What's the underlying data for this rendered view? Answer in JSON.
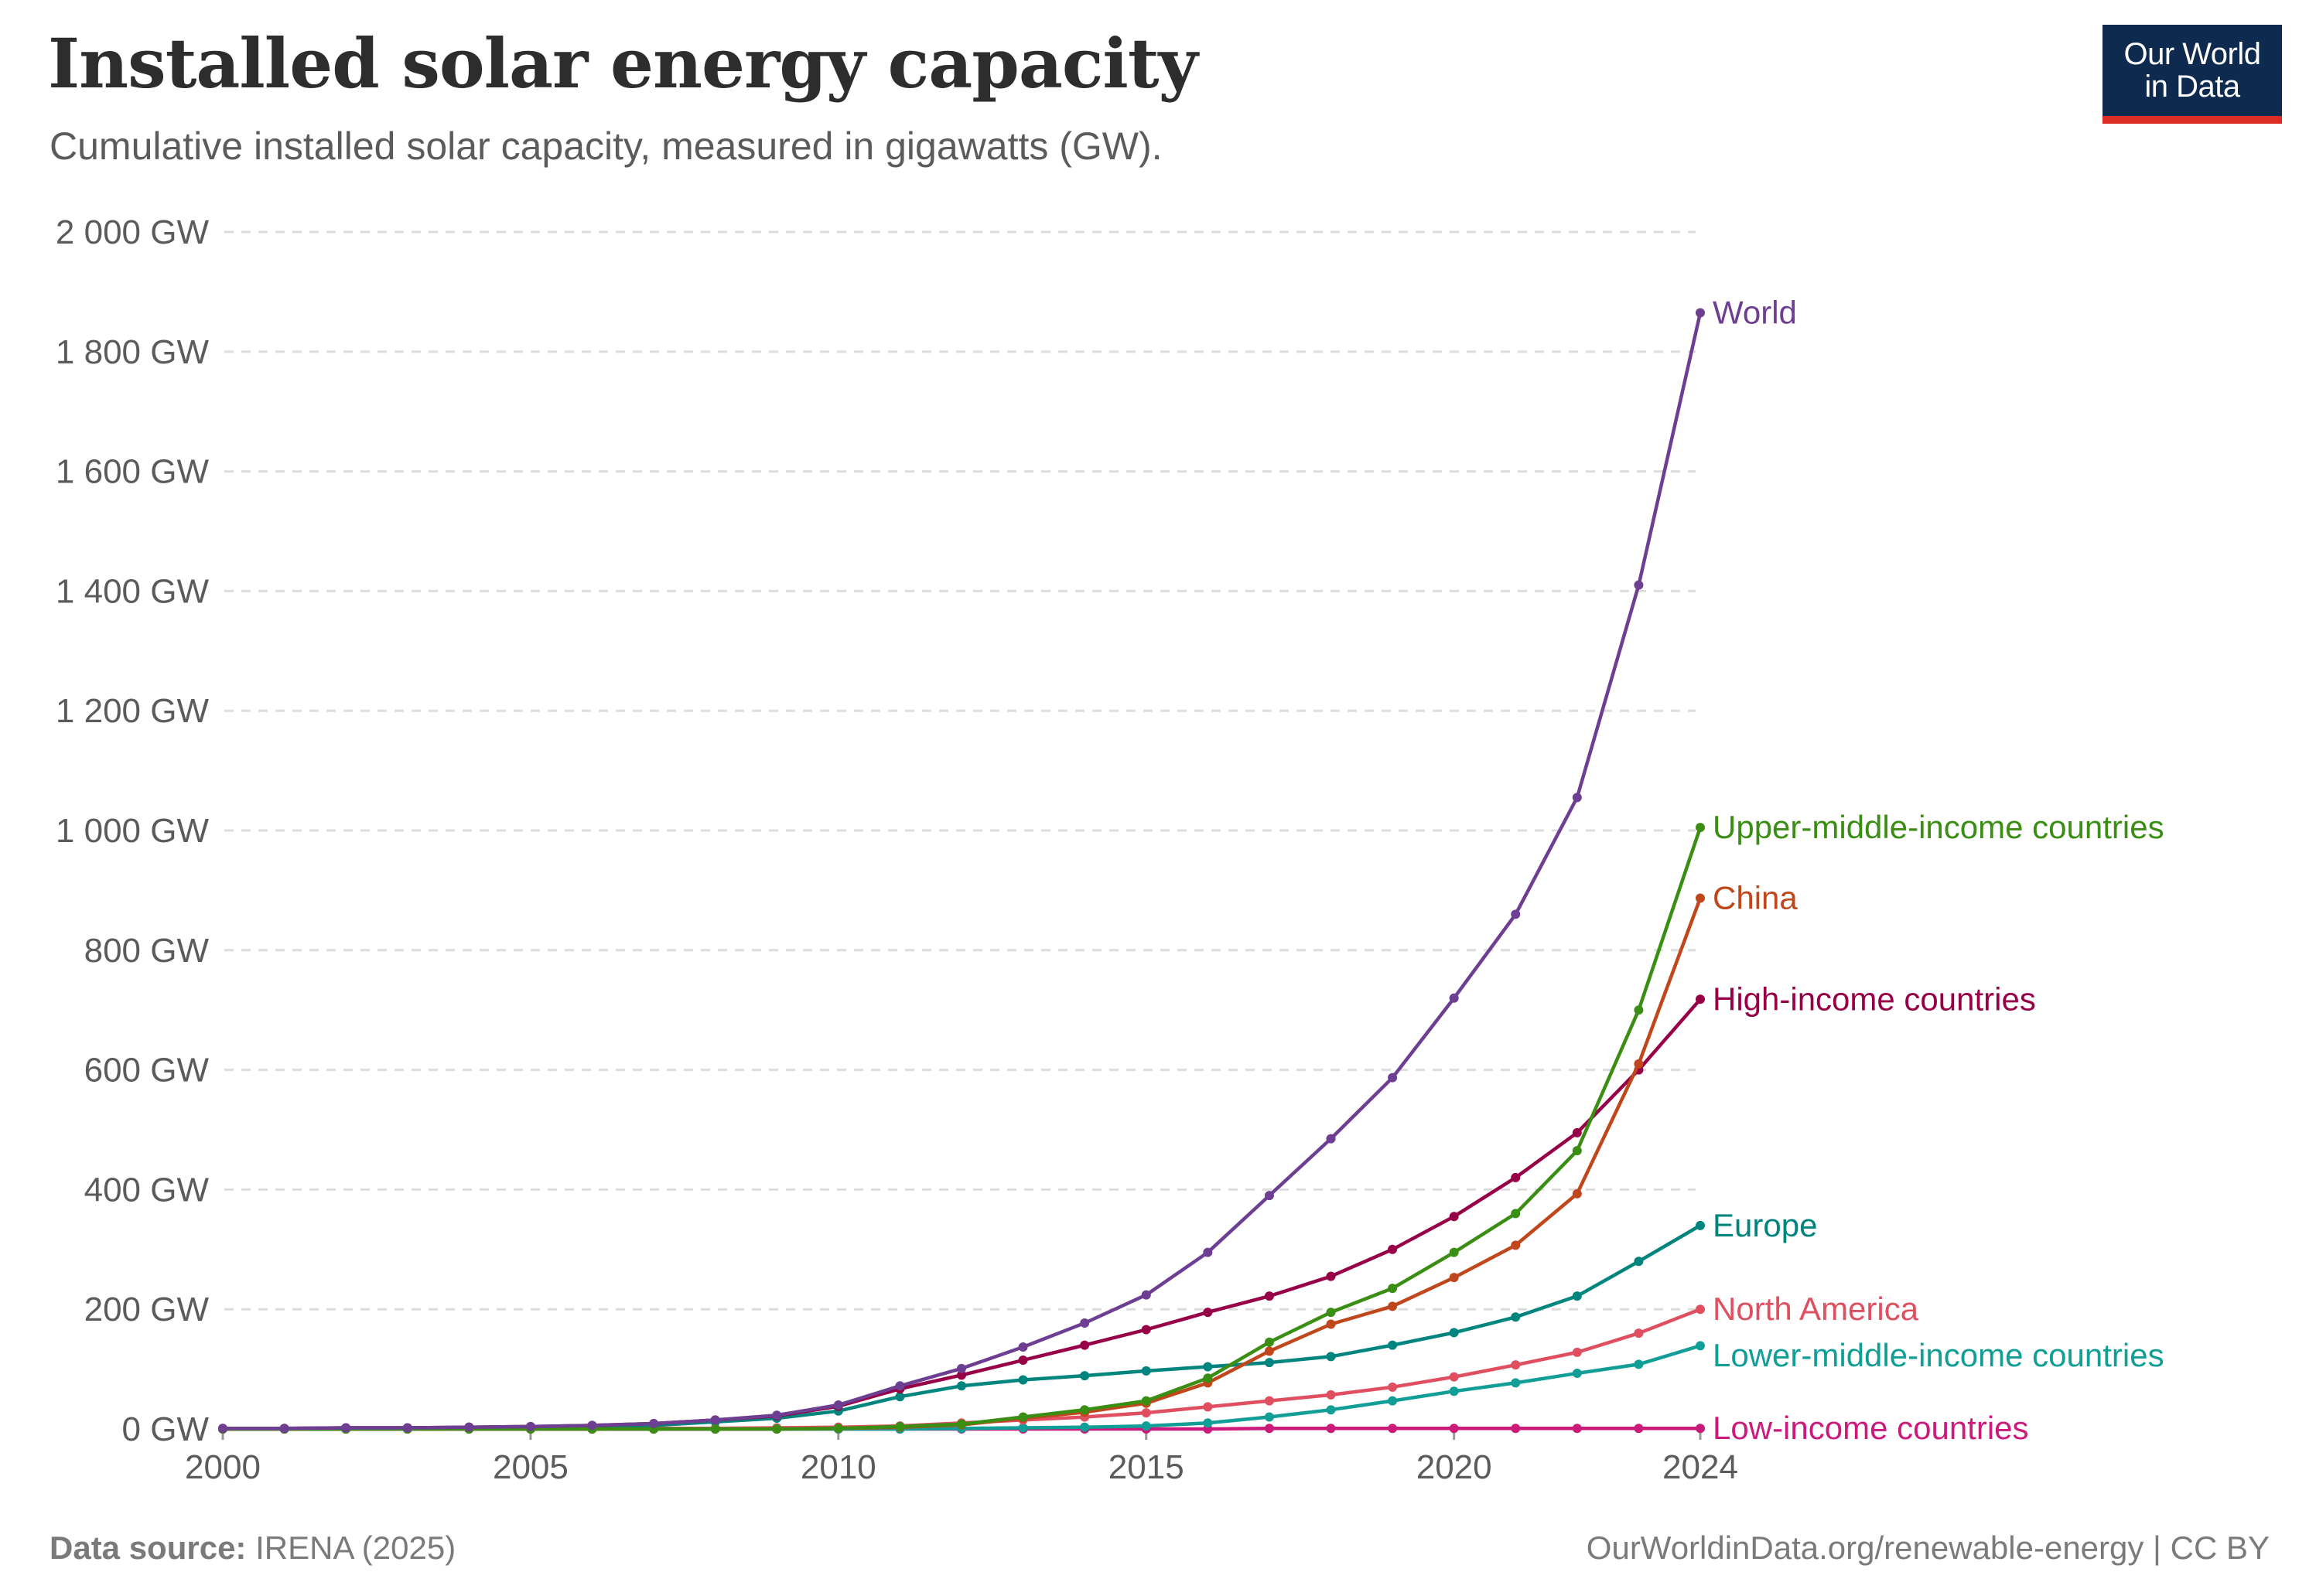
{
  "title": "Installed solar energy capacity",
  "subtitle": "Cumulative installed solar capacity, measured in gigawatts (GW).",
  "logo": {
    "line1": "Our World",
    "line2": "in Data"
  },
  "footer": {
    "source_label": "Data source:",
    "source_value": "IRENA (2025)",
    "credit": "OurWorldinData.org/renewable-energy | CC BY"
  },
  "colors": {
    "logo_bg": "#0f2a4f",
    "logo_accent": "#dc2c24",
    "grid": "#dddddd"
  },
  "chart_data": {
    "type": "line",
    "title": "Installed solar energy capacity",
    "xlabel": "",
    "ylabel": "",
    "xlim": [
      2000,
      2024
    ],
    "ylim": [
      0,
      2000
    ],
    "x_ticks": [
      {
        "value": 2000,
        "label": "2000"
      },
      {
        "value": 2005,
        "label": "2005"
      },
      {
        "value": 2010,
        "label": "2010"
      },
      {
        "value": 2015,
        "label": "2015"
      },
      {
        "value": 2020,
        "label": "2020"
      },
      {
        "value": 2024,
        "label": "2024"
      }
    ],
    "y_ticks": [
      {
        "value": 0,
        "label": "0 GW"
      },
      {
        "value": 200,
        "label": "200 GW"
      },
      {
        "value": 400,
        "label": "400 GW"
      },
      {
        "value": 600,
        "label": "600 GW"
      },
      {
        "value": 800,
        "label": "800 GW"
      },
      {
        "value": 1000,
        "label": "1 000 GW"
      },
      {
        "value": 1200,
        "label": "1 200 GW"
      },
      {
        "value": 1400,
        "label": "1 400 GW"
      },
      {
        "value": 1600,
        "label": "1 600 GW"
      },
      {
        "value": 1800,
        "label": "1 800 GW"
      },
      {
        "value": 2000,
        "label": "2 000 GW"
      }
    ],
    "grid": true,
    "legend": "end-of-line labels",
    "x": [
      2000,
      2001,
      2002,
      2003,
      2004,
      2005,
      2006,
      2007,
      2008,
      2009,
      2010,
      2011,
      2012,
      2013,
      2014,
      2015,
      2016,
      2017,
      2018,
      2019,
      2020,
      2021,
      2022,
      2023,
      2024
    ],
    "series": [
      {
        "name": "World",
        "color": "#6d3e91",
        "values": [
          1,
          1,
          2,
          2,
          3,
          4,
          6,
          9,
          15,
          23,
          40,
          72,
          101,
          137,
          177,
          224,
          295,
          390,
          485,
          587,
          720,
          860,
          1055,
          1410,
          1865
        ]
      },
      {
        "name": "Upper-middle-income countries",
        "color": "#3a8e13",
        "values": [
          0,
          0,
          0,
          0,
          0,
          0,
          0,
          0,
          0,
          0,
          1,
          4,
          8,
          20,
          32,
          47,
          85,
          145,
          195,
          235,
          295,
          360,
          465,
          700,
          1005
        ]
      },
      {
        "name": "China",
        "color": "#c0461b",
        "values": [
          0,
          0,
          0,
          0,
          0,
          0,
          0,
          0,
          0,
          0,
          1,
          3,
          7,
          18,
          28,
          43,
          77,
          130,
          175,
          205,
          253,
          307,
          393,
          610,
          887
        ]
      },
      {
        "name": "High-income countries",
        "color": "#970046",
        "values": [
          1,
          1,
          2,
          2,
          3,
          4,
          6,
          9,
          15,
          22,
          38,
          67,
          90,
          115,
          140,
          166,
          195,
          222,
          255,
          300,
          355,
          420,
          495,
          600,
          718
        ]
      },
      {
        "name": "Europe",
        "color": "#00847e",
        "values": [
          0,
          0,
          0,
          0,
          1,
          2,
          4,
          6,
          12,
          18,
          30,
          54,
          72,
          82,
          89,
          97,
          104,
          111,
          121,
          140,
          161,
          187,
          222,
          280,
          340
        ]
      },
      {
        "name": "North America",
        "color": "#e04f5f",
        "values": [
          0,
          0,
          0,
          0,
          0,
          0,
          0,
          1,
          1,
          2,
          3,
          5,
          10,
          15,
          20,
          27,
          37,
          47,
          57,
          70,
          87,
          107,
          128,
          160,
          200
        ]
      },
      {
        "name": "Lower-middle-income countries",
        "color": "#109e96",
        "values": [
          0,
          0,
          0,
          0,
          0,
          0,
          0,
          0,
          0,
          0,
          0,
          0,
          1,
          2,
          3,
          5,
          10,
          20,
          32,
          47,
          63,
          77,
          93,
          108,
          139
        ]
      },
      {
        "name": "Low-income countries",
        "color": "#cc1a7c",
        "values": [
          0,
          0,
          0,
          0,
          0,
          0,
          0,
          0,
          0,
          0,
          0,
          0,
          0,
          0,
          0,
          0,
          0,
          1,
          1,
          1,
          1,
          1,
          1,
          1,
          1
        ]
      }
    ],
    "label_order": [
      "World",
      "Upper-middle-income countries",
      "China",
      "High-income countries",
      "Europe",
      "North America",
      "Lower-middle-income countries",
      "Low-income countries"
    ]
  }
}
